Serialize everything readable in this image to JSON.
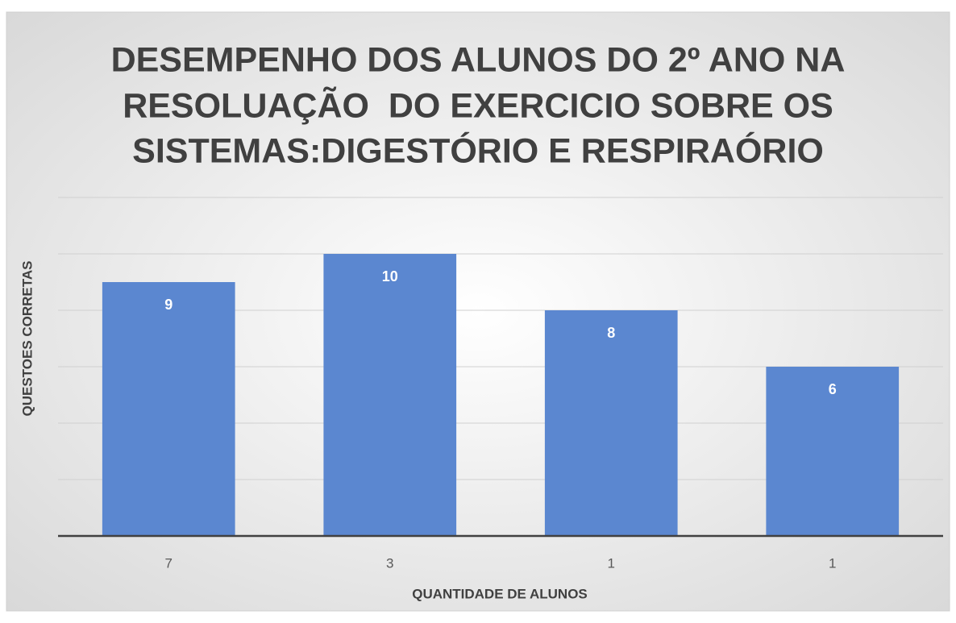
{
  "chart_data": {
    "type": "bar",
    "title": [
      "DESEMPENHO DOS ALUNOS DO 2º ANO NA",
      "RESOLUAÇÃO  DO EXERCICIO SOBRE OS",
      "SISTEMAS:DIGESTÓRIO E RESPIRAÓRIO"
    ],
    "x_label": "QUANTIDADE DE ALUNOS",
    "y_label": "QUESTOES CORRETAS",
    "categories": [
      "7",
      "3",
      "1",
      "1"
    ],
    "values": [
      9,
      10,
      8,
      6
    ],
    "color": "#5b87d0",
    "ylim": [
      0,
      12
    ],
    "yticks": [
      0,
      2,
      4,
      6,
      8,
      10,
      12
    ],
    "grid": true
  }
}
